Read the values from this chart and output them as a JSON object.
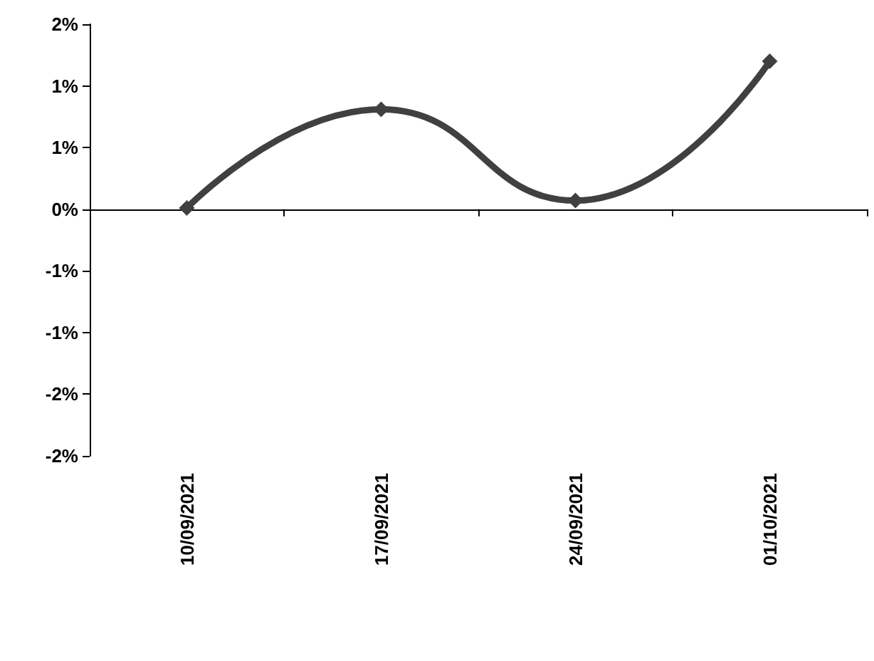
{
  "chart_data": {
    "type": "line",
    "categories": [
      "10/09/2021",
      "17/09/2021",
      "24/09/2021",
      "01/10/2021"
    ],
    "series": [
      {
        "color": "#404040",
        "values": [
          0.01,
          0.81,
          0.07,
          1.2
        ]
      }
    ],
    "ylim": [
      -2,
      1.5
    ],
    "yticks": [
      {
        "value": -2,
        "label": "-2%"
      },
      {
        "value": -1.5,
        "label": "-2%"
      },
      {
        "value": -1,
        "label": "-1%"
      },
      {
        "value": -0.5,
        "label": "-1%"
      },
      {
        "value": 0,
        "label": "0%"
      },
      {
        "value": 0.5,
        "label": "1%"
      },
      {
        "value": 1,
        "label": "1%"
      },
      {
        "value": 1.5,
        "label": "2%"
      }
    ],
    "marker": "diamond",
    "line_style": "solid"
  }
}
